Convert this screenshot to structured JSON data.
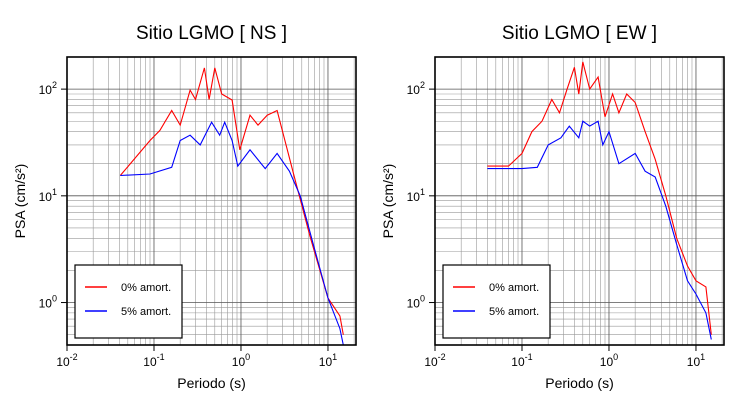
{
  "chart_data": [
    {
      "type": "line",
      "title": "Sitio LGMO [ NS ]",
      "x_label": "Periodo (s)",
      "y_label": "PSA (cm/s²)",
      "log_x": true,
      "log_y": true,
      "grid": true,
      "legend": "lower left",
      "xlim": [
        0.01,
        21
      ],
      "ylim": [
        0.4,
        200
      ],
      "xticks": [
        {
          "value": 0.01,
          "label": "10^-2"
        },
        {
          "value": 0.1,
          "label": "10^-1"
        },
        {
          "value": 1,
          "label": "10^0"
        },
        {
          "value": 10,
          "label": "10^1"
        }
      ],
      "yticks": [
        {
          "value": 1,
          "label": "10^0"
        },
        {
          "value": 10,
          "label": "10^1"
        },
        {
          "value": 100,
          "label": "10^2"
        }
      ],
      "series": [
        {
          "name": "0% amort.",
          "color": "#ff0000",
          "x": [
            0.041,
            0.09,
            0.117,
            0.16,
            0.2,
            0.26,
            0.3,
            0.38,
            0.43,
            0.5,
            0.6,
            0.79,
            0.97,
            1.27,
            1.57,
            2.0,
            2.6,
            3.2,
            4.2,
            6.2,
            10,
            13.7,
            15
          ],
          "values": [
            15.5,
            33,
            41,
            63,
            46,
            98,
            80,
            158,
            80,
            158,
            90,
            79,
            27,
            57,
            46,
            57,
            63,
            33,
            14,
            4.2,
            1.1,
            0.75,
            0.5
          ]
        },
        {
          "name": "5% amort.",
          "color": "#0000ff",
          "x": [
            0.041,
            0.09,
            0.16,
            0.2,
            0.26,
            0.34,
            0.46,
            0.57,
            0.65,
            0.79,
            0.92,
            1.27,
            1.9,
            2.6,
            3.6,
            4.8,
            6.6,
            10,
            13.7,
            15
          ],
          "values": [
            15.5,
            16,
            18.5,
            33,
            37,
            30,
            49,
            37,
            49,
            33,
            19,
            27,
            18,
            25,
            17,
            10,
            3.8,
            1.1,
            0.57,
            0.4
          ]
        }
      ]
    },
    {
      "type": "line",
      "title": "Sitio LGMO [ EW ]",
      "x_label": "Periodo (s)",
      "y_label": "PSA (cm/s²)",
      "log_x": true,
      "log_y": true,
      "grid": true,
      "legend": "lower left",
      "xlim": [
        0.01,
        21
      ],
      "ylim": [
        0.4,
        200
      ],
      "xticks": [
        {
          "value": 0.01,
          "label": "10^-2"
        },
        {
          "value": 0.1,
          "label": "10^-1"
        },
        {
          "value": 1,
          "label": "10^0"
        },
        {
          "value": 10,
          "label": "10^1"
        }
      ],
      "yticks": [
        {
          "value": 1,
          "label": "10^0"
        },
        {
          "value": 10,
          "label": "10^1"
        },
        {
          "value": 100,
          "label": "10^2"
        }
      ],
      "series": [
        {
          "name": "0% amort.",
          "color": "#ff0000",
          "x": [
            0.04,
            0.07,
            0.1,
            0.13,
            0.17,
            0.22,
            0.27,
            0.33,
            0.4,
            0.45,
            0.5,
            0.6,
            0.75,
            0.9,
            1.1,
            1.3,
            1.6,
            2.0,
            2.6,
            3.4,
            4.5,
            6.0,
            8,
            10,
            13,
            15
          ],
          "values": [
            19,
            19,
            25,
            40,
            50,
            80,
            60,
            100,
            160,
            90,
            180,
            100,
            130,
            55,
            90,
            60,
            90,
            75,
            40,
            22,
            10,
            4,
            2.2,
            1.6,
            1.4,
            0.5
          ]
        },
        {
          "name": "5% amort.",
          "color": "#0000ff",
          "x": [
            0.04,
            0.1,
            0.15,
            0.2,
            0.28,
            0.35,
            0.45,
            0.5,
            0.6,
            0.75,
            0.85,
            1.0,
            1.3,
            2.0,
            2.6,
            3.4,
            4.5,
            6,
            8,
            10,
            13,
            15
          ],
          "values": [
            18,
            18,
            18.5,
            30,
            35,
            45,
            35,
            50,
            45,
            50,
            30,
            40,
            20,
            25,
            17,
            15,
            8,
            3.5,
            1.6,
            1.2,
            0.8,
            0.45
          ]
        }
      ]
    }
  ]
}
